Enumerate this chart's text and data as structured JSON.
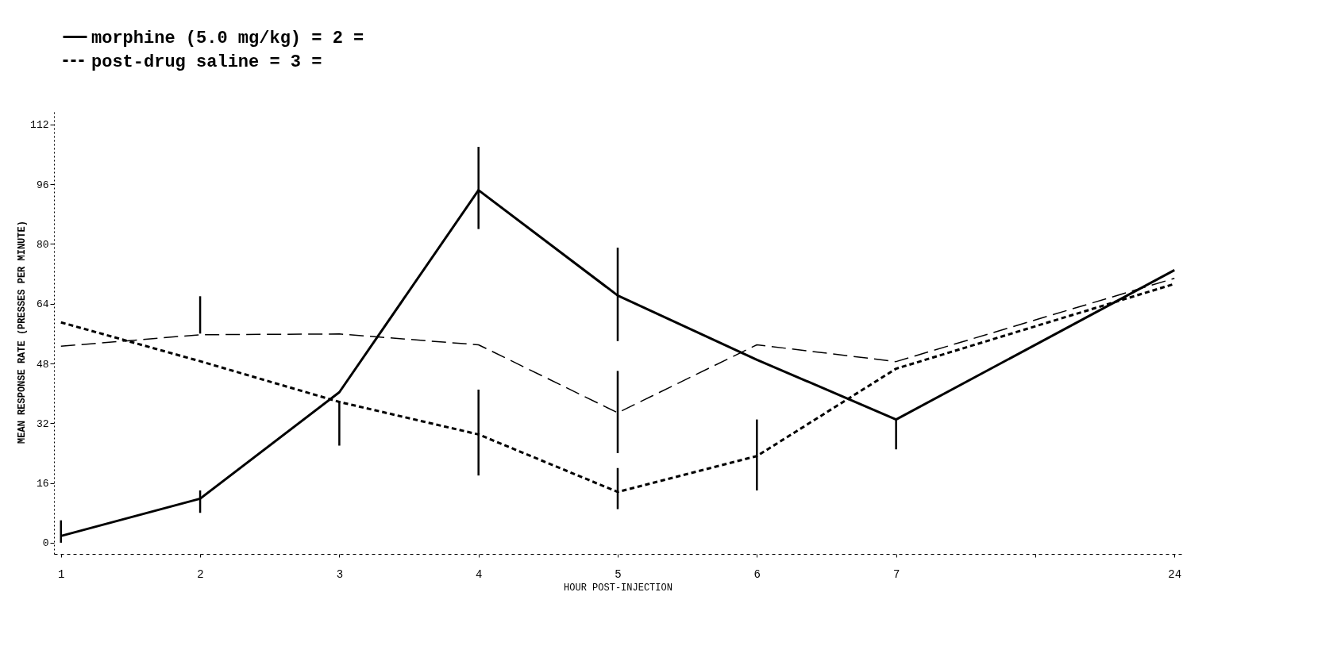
{
  "chart_data": {
    "type": "line",
    "xlabel": "HOUR POST-INJECTION",
    "ylabel": "MEAN RESPONSE RATE (PRESSES PER MINUTE)",
    "categories": [
      "1",
      "2",
      "3",
      "4",
      "5",
      "6",
      "7",
      null,
      "24"
    ],
    "ylim": [
      -3,
      116
    ],
    "yticks": [
      0,
      16,
      32,
      48,
      64,
      80,
      96,
      112
    ],
    "grid": false,
    "legend": "top",
    "marker": "none",
    "series": [
      {
        "color": "#000000",
        "line_style": "dashed",
        "values": [
          52.6,
          55.7,
          55.9,
          53,
          34.8,
          53,
          48.5,
          null,
          70.8
        ],
        "errors": [
          null,
          [
            56,
            66
          ],
          null,
          null,
          [
            24,
            46
          ],
          null,
          null,
          null,
          null
        ]
      },
      {
        "name": "morphine (5.0 mg/kg) = 2 =",
        "color": "#000000",
        "line_style": "solid",
        "values": [
          1.8,
          11.8,
          40.3,
          94.4,
          66.2,
          49,
          33,
          null,
          73
        ],
        "errors": [
          [
            0,
            6
          ],
          [
            8,
            14
          ],
          null,
          [
            84,
            106
          ],
          [
            54,
            79
          ],
          null,
          [
            25,
            33
          ],
          null,
          null
        ]
      },
      {
        "name": "post-drug saline = 3 =",
        "color": "#000000",
        "line_style": "dotted",
        "values": [
          59,
          48.6,
          37.7,
          29,
          13.6,
          23.2,
          46.6,
          null,
          69.3
        ],
        "errors": [
          null,
          null,
          [
            26,
            38
          ],
          [
            18,
            41
          ],
          [
            9,
            20
          ],
          [
            14,
            33
          ],
          null,
          null,
          null
        ]
      }
    ]
  }
}
